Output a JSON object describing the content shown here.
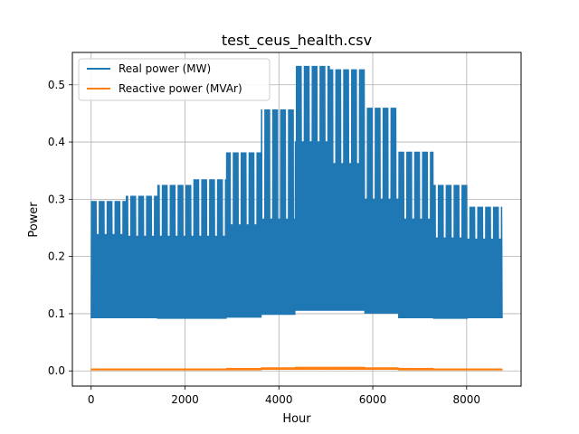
{
  "chart_data": {
    "type": "line",
    "title": "test_ceus_health.csv",
    "xlabel": "Hour",
    "ylabel": "Power",
    "xlim": [
      -400,
      9160
    ],
    "ylim": [
      -0.0265,
      0.5565
    ],
    "xticks": [
      0,
      2000,
      4000,
      6000,
      8000
    ],
    "xtick_labels": [
      "0",
      "2000",
      "4000",
      "6000",
      "8000"
    ],
    "yticks": [
      0.0,
      0.1,
      0.2,
      0.3,
      0.4,
      0.5
    ],
    "ytick_labels": [
      "0.0",
      "0.1",
      "0.2",
      "0.3",
      "0.4",
      "0.5"
    ],
    "grid": true,
    "legend": {
      "location": "upper-left"
    },
    "series": [
      {
        "name": "Real power (MW)",
        "color": "#1f77b4",
        "note_shape": "dense daily oscillation between a low base and monthly peak",
        "monthly": [
          {
            "start": 0,
            "end": 744,
            "low": 0.092,
            "mid": 0.238,
            "high": 0.297
          },
          {
            "start": 744,
            "end": 1416,
            "low": 0.092,
            "mid": 0.235,
            "high": 0.306
          },
          {
            "start": 1416,
            "end": 2160,
            "low": 0.091,
            "mid": 0.235,
            "high": 0.325
          },
          {
            "start": 2160,
            "end": 2880,
            "low": 0.091,
            "mid": 0.235,
            "high": 0.335
          },
          {
            "start": 2880,
            "end": 3624,
            "low": 0.093,
            "mid": 0.255,
            "high": 0.382
          },
          {
            "start": 3624,
            "end": 4344,
            "low": 0.098,
            "mid": 0.265,
            "high": 0.457
          },
          {
            "start": 4344,
            "end": 5088,
            "low": 0.105,
            "mid": 0.4,
            "high": 0.533
          },
          {
            "start": 5088,
            "end": 5832,
            "low": 0.105,
            "mid": 0.362,
            "high": 0.527
          },
          {
            "start": 5832,
            "end": 6552,
            "low": 0.1,
            "mid": 0.3,
            "high": 0.46
          },
          {
            "start": 6552,
            "end": 7296,
            "low": 0.092,
            "mid": 0.265,
            "high": 0.383
          },
          {
            "start": 7296,
            "end": 8016,
            "low": 0.091,
            "mid": 0.232,
            "high": 0.325
          },
          {
            "start": 8016,
            "end": 8760,
            "low": 0.092,
            "mid": 0.23,
            "high": 0.287
          }
        ]
      },
      {
        "name": "Reactive power (MVAr)",
        "color": "#ff7f0e",
        "monthly": [
          {
            "start": 0,
            "end": 744,
            "low": 0.001,
            "high": 0.004
          },
          {
            "start": 744,
            "end": 1416,
            "low": 0.001,
            "high": 0.004
          },
          {
            "start": 1416,
            "end": 2160,
            "low": 0.001,
            "high": 0.004
          },
          {
            "start": 2160,
            "end": 2880,
            "low": 0.001,
            "high": 0.004
          },
          {
            "start": 2880,
            "end": 3624,
            "low": 0.001,
            "high": 0.005
          },
          {
            "start": 3624,
            "end": 4344,
            "low": 0.002,
            "high": 0.006
          },
          {
            "start": 4344,
            "end": 5088,
            "low": 0.002,
            "high": 0.007
          },
          {
            "start": 5088,
            "end": 5832,
            "low": 0.002,
            "high": 0.007
          },
          {
            "start": 5832,
            "end": 6552,
            "low": 0.002,
            "high": 0.006
          },
          {
            "start": 6552,
            "end": 7296,
            "low": 0.001,
            "high": 0.005
          },
          {
            "start": 7296,
            "end": 8016,
            "low": 0.001,
            "high": 0.004
          },
          {
            "start": 8016,
            "end": 8760,
            "low": 0.001,
            "high": 0.004
          }
        ]
      }
    ]
  }
}
